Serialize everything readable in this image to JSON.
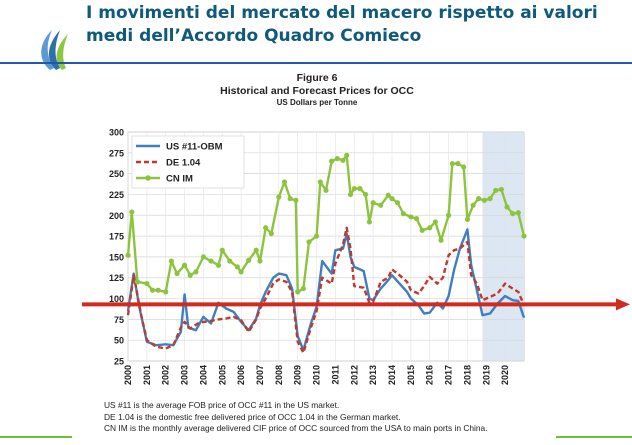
{
  "slide": {
    "title": "I movimenti del mercato del macero rispetto ai valori medi dell’Accordo Quadro Comieco"
  },
  "figure": {
    "label": "Figure 6",
    "title": "Historical and Forecast Prices for OCC",
    "subtitle": "US Dollars per Tonne"
  },
  "notes": [
    "US #11 is the average FOB price of OCC #11 in the US market.",
    "DE 1.04 is the domestic free delivered price of OCC 1.04 in the German market.",
    "CN IM is the monthly average delivered CIF price of OCC sourced from the USA to main ports in China."
  ],
  "colors": {
    "title": "#0f5a7a",
    "us": "#3f7fc1",
    "de": "#c0392b",
    "cn": "#8dc43f",
    "forecast_band": "#dce7f3",
    "reference_arrow": "#d42a1e",
    "rule": "#1f5aa6",
    "accent": "#6cbf3a"
  },
  "chart_data": {
    "type": "line",
    "x_tick_labels": [
      "2000",
      "2001",
      "2002",
      "2003",
      "2004",
      "2005",
      "2006",
      "2007",
      "2008",
      "2009",
      "2010",
      "2011",
      "2012",
      "2013",
      "2014",
      "2015",
      "2016",
      "2017",
      "2018",
      "2019",
      "2020"
    ],
    "y_ticks": [
      25,
      50,
      75,
      100,
      125,
      150,
      175,
      200,
      225,
      250,
      275,
      300
    ],
    "xlim": [
      2000,
      2021
    ],
    "ylim": [
      25,
      300
    ],
    "grid": true,
    "legend_position": "top-left",
    "forecast_region": [
      2018.8,
      2021
    ],
    "reference_line_y": 93,
    "series": [
      {
        "name": "US #11-OBM",
        "color": "#3f7fc1",
        "dash": "solid",
        "points": [
          [
            2000,
            85
          ],
          [
            2000.3,
            130
          ],
          [
            2000.6,
            90
          ],
          [
            2001,
            48
          ],
          [
            2001.5,
            44
          ],
          [
            2002,
            45
          ],
          [
            2002.4,
            44
          ],
          [
            2002.8,
            60
          ],
          [
            2003,
            105
          ],
          [
            2003.2,
            65
          ],
          [
            2003.6,
            62
          ],
          [
            2004,
            78
          ],
          [
            2004.4,
            70
          ],
          [
            2004.8,
            95
          ],
          [
            2005.2,
            88
          ],
          [
            2005.6,
            84
          ],
          [
            2006,
            72
          ],
          [
            2006.4,
            62
          ],
          [
            2006.8,
            76
          ],
          [
            2007,
            92
          ],
          [
            2007.3,
            108
          ],
          [
            2007.7,
            125
          ],
          [
            2008,
            130
          ],
          [
            2008.4,
            128
          ],
          [
            2008.7,
            112
          ],
          [
            2009,
            55
          ],
          [
            2009.3,
            38
          ],
          [
            2009.7,
            70
          ],
          [
            2010,
            90
          ],
          [
            2010.3,
            145
          ],
          [
            2010.8,
            130
          ],
          [
            2011,
            158
          ],
          [
            2011.4,
            160
          ],
          [
            2011.6,
            178
          ],
          [
            2011.8,
            150
          ],
          [
            2012,
            138
          ],
          [
            2012.5,
            133
          ],
          [
            2012.8,
            100
          ],
          [
            2013,
            98
          ],
          [
            2013.4,
            112
          ],
          [
            2013.8,
            122
          ],
          [
            2014,
            128
          ],
          [
            2014.4,
            118
          ],
          [
            2014.8,
            108
          ],
          [
            2015,
            100
          ],
          [
            2015.4,
            92
          ],
          [
            2015.7,
            82
          ],
          [
            2016,
            83
          ],
          [
            2016.4,
            95
          ],
          [
            2016.7,
            88
          ],
          [
            2017,
            103
          ],
          [
            2017.3,
            135
          ],
          [
            2017.6,
            160
          ],
          [
            2018,
            183
          ],
          [
            2018.2,
            140
          ],
          [
            2018.5,
            110
          ],
          [
            2018.8,
            80
          ],
          [
            2019.2,
            82
          ],
          [
            2019.6,
            94
          ],
          [
            2020,
            103
          ],
          [
            2020.4,
            98
          ],
          [
            2020.7,
            97
          ],
          [
            2021,
            77
          ]
        ]
      },
      {
        "name": "DE 1.04",
        "color": "#c0392b",
        "dash": "dashed",
        "points": [
          [
            2000,
            80
          ],
          [
            2000.3,
            128
          ],
          [
            2000.7,
            80
          ],
          [
            2001,
            50
          ],
          [
            2001.5,
            42
          ],
          [
            2002,
            40
          ],
          [
            2002.4,
            44
          ],
          [
            2002.8,
            65
          ],
          [
            2003,
            72
          ],
          [
            2003.3,
            64
          ],
          [
            2003.7,
            70
          ],
          [
            2004,
            72
          ],
          [
            2004.4,
            73
          ],
          [
            2004.8,
            75
          ],
          [
            2005.2,
            76
          ],
          [
            2005.6,
            78
          ],
          [
            2006,
            74
          ],
          [
            2006.4,
            60
          ],
          [
            2006.8,
            75
          ],
          [
            2007,
            88
          ],
          [
            2007.3,
            100
          ],
          [
            2007.7,
            118
          ],
          [
            2008,
            123
          ],
          [
            2008.4,
            120
          ],
          [
            2008.7,
            108
          ],
          [
            2009,
            48
          ],
          [
            2009.3,
            35
          ],
          [
            2009.7,
            65
          ],
          [
            2010,
            85
          ],
          [
            2010.3,
            125
          ],
          [
            2010.8,
            118
          ],
          [
            2011,
            142
          ],
          [
            2011.4,
            165
          ],
          [
            2011.6,
            185
          ],
          [
            2011.8,
            160
          ],
          [
            2012,
            115
          ],
          [
            2012.5,
            113
          ],
          [
            2012.8,
            95
          ],
          [
            2013,
            96
          ],
          [
            2013.4,
            120
          ],
          [
            2013.8,
            125
          ],
          [
            2014,
            135
          ],
          [
            2014.4,
            128
          ],
          [
            2014.8,
            120
          ],
          [
            2015,
            110
          ],
          [
            2015.4,
            106
          ],
          [
            2015.7,
            115
          ],
          [
            2016,
            126
          ],
          [
            2016.4,
            118
          ],
          [
            2016.7,
            125
          ],
          [
            2017,
            152
          ],
          [
            2017.3,
            158
          ],
          [
            2017.6,
            160
          ],
          [
            2018,
            168
          ],
          [
            2018.2,
            128
          ],
          [
            2018.5,
            118
          ],
          [
            2018.8,
            98
          ],
          [
            2019.2,
            102
          ],
          [
            2019.6,
            106
          ],
          [
            2020,
            118
          ],
          [
            2020.4,
            112
          ],
          [
            2020.7,
            108
          ],
          [
            2021,
            92
          ]
        ]
      },
      {
        "name": "CN IM",
        "color": "#8dc43f",
        "dash": "solid",
        "points": [
          [
            2000,
            152
          ],
          [
            2000.2,
            204
          ],
          [
            2000.5,
            120
          ],
          [
            2001,
            118
          ],
          [
            2001.3,
            110
          ],
          [
            2001.6,
            110
          ],
          [
            2002,
            108
          ],
          [
            2002.3,
            145
          ],
          [
            2002.6,
            130
          ],
          [
            2003,
            140
          ],
          [
            2003.3,
            128
          ],
          [
            2003.6,
            132
          ],
          [
            2004,
            150
          ],
          [
            2004.4,
            145
          ],
          [
            2004.8,
            140
          ],
          [
            2005,
            158
          ],
          [
            2005.4,
            145
          ],
          [
            2005.8,
            138
          ],
          [
            2006,
            132
          ],
          [
            2006.4,
            146
          ],
          [
            2006.8,
            158
          ],
          [
            2007,
            145
          ],
          [
            2007.3,
            185
          ],
          [
            2007.6,
            178
          ],
          [
            2008,
            222
          ],
          [
            2008.3,
            240
          ],
          [
            2008.6,
            220
          ],
          [
            2008.9,
            218
          ],
          [
            2009,
            108
          ],
          [
            2009.3,
            112
          ],
          [
            2009.6,
            168
          ],
          [
            2010,
            175
          ],
          [
            2010.2,
            240
          ],
          [
            2010.5,
            230
          ],
          [
            2010.8,
            265
          ],
          [
            2011.1,
            268
          ],
          [
            2011.4,
            266
          ],
          [
            2011.6,
            272
          ],
          [
            2011.8,
            225
          ],
          [
            2012,
            232
          ],
          [
            2012.3,
            232
          ],
          [
            2012.6,
            225
          ],
          [
            2012.8,
            192
          ],
          [
            2013,
            215
          ],
          [
            2013.4,
            212
          ],
          [
            2013.8,
            224
          ],
          [
            2014,
            220
          ],
          [
            2014.3,
            215
          ],
          [
            2014.6,
            202
          ],
          [
            2015,
            198
          ],
          [
            2015.3,
            196
          ],
          [
            2015.6,
            182
          ],
          [
            2016,
            185
          ],
          [
            2016.3,
            192
          ],
          [
            2016.6,
            170
          ],
          [
            2017,
            200
          ],
          [
            2017.2,
            262
          ],
          [
            2017.5,
            262
          ],
          [
            2017.8,
            258
          ],
          [
            2018,
            195
          ],
          [
            2018.3,
            212
          ],
          [
            2018.6,
            220
          ],
          [
            2018.9,
            218
          ],
          [
            2019.2,
            220
          ],
          [
            2019.5,
            230
          ],
          [
            2019.8,
            231
          ],
          [
            2020.1,
            210
          ],
          [
            2020.4,
            202
          ],
          [
            2020.7,
            203
          ],
          [
            2021,
            175
          ]
        ]
      }
    ]
  }
}
